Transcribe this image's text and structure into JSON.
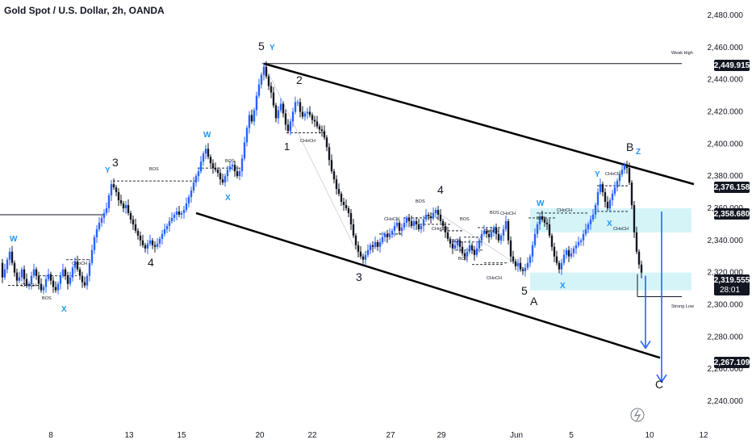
{
  "chart_data": {
    "type": "candlestick",
    "title": "Gold Spot / U.S. Dollar, 2h, OANDA",
    "colors": {
      "up": "#2962ff",
      "down": "#131722",
      "wick": "#131722",
      "channel": "#000000",
      "zone": "#b2ebf2",
      "arrow": "#2962ff",
      "wave_blue": "#2196f3"
    },
    "y_axis": {
      "min": 2230,
      "max": 2490,
      "ticks": [
        "2,240.000",
        "2,260.000",
        "2,280.000",
        "2,300.000",
        "2,320.000",
        "2,340.000",
        "2,360.000",
        "2,380.000",
        "2,400.000",
        "2,420.000",
        "2,440.000",
        "2,460.000",
        "2,480.000"
      ],
      "tick_values": [
        2240,
        2260,
        2280,
        2300,
        2320,
        2340,
        2360,
        2380,
        2400,
        2420,
        2440,
        2460,
        2480
      ]
    },
    "x_axis": {
      "ticks": [
        "8",
        "13",
        "15",
        "20",
        "22",
        "27",
        "29",
        "Jun",
        "5",
        "10",
        "12"
      ]
    },
    "price_badges": [
      {
        "label": "2,449.915",
        "value": 2449.915
      },
      {
        "label": "2,376.158",
        "value": 2376.158
      },
      {
        "label": "2,358.680",
        "value": 2358.68
      },
      {
        "label": "2,319.555",
        "value": 2319.555,
        "sub": "28:01"
      },
      {
        "label": "2,267.109",
        "value": 2267.109
      }
    ],
    "level_labels": [
      {
        "text": "Weak High",
        "value": 2450
      },
      {
        "text": "Strong Low",
        "value": 2305
      }
    ],
    "wave_labels": [
      {
        "text": "5",
        "color": "black"
      },
      {
        "text": "Y",
        "color": "blue"
      },
      {
        "text": "2",
        "color": "black"
      },
      {
        "text": "1",
        "color": "black"
      },
      {
        "text": "W",
        "color": "blue"
      },
      {
        "text": "X",
        "color": "blue"
      },
      {
        "text": "3",
        "color": "black"
      },
      {
        "text": "Y",
        "color": "blue"
      },
      {
        "text": "4",
        "color": "black"
      },
      {
        "text": "W",
        "color": "blue"
      },
      {
        "text": "X",
        "color": "blue"
      },
      {
        "text": "3",
        "color": "black"
      },
      {
        "text": "4",
        "color": "black"
      },
      {
        "text": "W",
        "color": "blue"
      },
      {
        "text": "5",
        "color": "black"
      },
      {
        "text": "A",
        "color": "black"
      },
      {
        "text": "X",
        "color": "blue"
      },
      {
        "text": "Y",
        "color": "blue"
      },
      {
        "text": "X",
        "color": "blue"
      },
      {
        "text": "B",
        "color": "black"
      },
      {
        "text": "Z",
        "color": "blue"
      },
      {
        "text": "C",
        "color": "black"
      }
    ],
    "structure_labels": [
      "BOS",
      "CHoCH",
      "BOS",
      "BOS",
      "CHoCH",
      "CHoCH",
      "BOS",
      "CHoCH",
      "CHoCH",
      "BOS",
      "CHoCH",
      "CHoCH",
      "BOS",
      "BOS",
      "BOS",
      "CHoCH",
      "CHoCH",
      "CHoCH",
      "BOS",
      "CHoCH"
    ],
    "close_path": [
      [
        0,
        2326
      ],
      [
        3,
        2317
      ],
      [
        6,
        2322
      ],
      [
        9,
        2328
      ],
      [
        12,
        2333
      ],
      [
        15,
        2326
      ],
      [
        18,
        2320
      ],
      [
        21,
        2315
      ],
      [
        24,
        2317
      ],
      [
        27,
        2322
      ],
      [
        30,
        2316
      ],
      [
        33,
        2312
      ],
      [
        36,
        2313
      ],
      [
        39,
        2318
      ],
      [
        42,
        2322
      ],
      [
        45,
        2318
      ],
      [
        48,
        2313
      ],
      [
        51,
        2309
      ],
      [
        54,
        2311
      ],
      [
        57,
        2316
      ],
      [
        60,
        2319
      ],
      [
        63,
        2315
      ],
      [
        66,
        2311
      ],
      [
        69,
        2309
      ],
      [
        72,
        2313
      ],
      [
        75,
        2318
      ],
      [
        78,
        2322
      ],
      [
        81,
        2318
      ],
      [
        84,
        2313
      ],
      [
        87,
        2317
      ],
      [
        90,
        2323
      ],
      [
        93,
        2327
      ],
      [
        96,
        2322
      ],
      [
        99,
        2318
      ],
      [
        102,
        2314
      ],
      [
        105,
        2312
      ],
      [
        108,
        2318
      ],
      [
        111,
        2326
      ],
      [
        114,
        2334
      ],
      [
        117,
        2342
      ],
      [
        120,
        2347
      ],
      [
        123,
        2351
      ],
      [
        126,
        2354
      ],
      [
        129,
        2357
      ],
      [
        132,
        2360
      ],
      [
        135,
        2368
      ],
      [
        138,
        2375
      ],
      [
        141,
        2373
      ],
      [
        144,
        2370
      ],
      [
        147,
        2365
      ],
      [
        150,
        2363
      ],
      [
        153,
        2360
      ],
      [
        156,
        2362
      ],
      [
        159,
        2357
      ],
      [
        162,
        2353
      ],
      [
        165,
        2350
      ],
      [
        168,
        2346
      ],
      [
        171,
        2343
      ],
      [
        174,
        2340
      ],
      [
        177,
        2337
      ],
      [
        180,
        2335
      ],
      [
        183,
        2338
      ],
      [
        186,
        2340
      ],
      [
        189,
        2337
      ],
      [
        192,
        2336
      ],
      [
        195,
        2338
      ],
      [
        198,
        2341
      ],
      [
        201,
        2344
      ],
      [
        204,
        2347
      ],
      [
        207,
        2349
      ],
      [
        210,
        2352
      ],
      [
        213,
        2354
      ],
      [
        216,
        2356
      ],
      [
        219,
        2358
      ],
      [
        222,
        2356
      ],
      [
        225,
        2357
      ],
      [
        228,
        2359
      ],
      [
        231,
        2363
      ],
      [
        234,
        2367
      ],
      [
        237,
        2371
      ],
      [
        240,
        2376
      ],
      [
        243,
        2380
      ],
      [
        246,
        2383
      ],
      [
        249,
        2389
      ],
      [
        252,
        2394
      ],
      [
        255,
        2397
      ],
      [
        258,
        2392
      ],
      [
        261,
        2388
      ],
      [
        264,
        2385
      ],
      [
        267,
        2384
      ],
      [
        270,
        2382
      ],
      [
        273,
        2378
      ],
      [
        276,
        2376
      ],
      [
        279,
        2380
      ],
      [
        282,
        2384
      ],
      [
        285,
        2386
      ],
      [
        288,
        2387
      ],
      [
        291,
        2383
      ],
      [
        294,
        2380
      ],
      [
        297,
        2383
      ],
      [
        300,
        2391
      ],
      [
        303,
        2401
      ],
      [
        306,
        2410
      ],
      [
        309,
        2418
      ],
      [
        312,
        2414
      ],
      [
        315,
        2421
      ],
      [
        318,
        2430
      ],
      [
        321,
        2437
      ],
      [
        324,
        2443
      ],
      [
        327,
        2448
      ],
      [
        330,
        2442
      ],
      [
        333,
        2436
      ],
      [
        336,
        2432
      ],
      [
        339,
        2424
      ],
      [
        342,
        2416
      ],
      [
        345,
        2421
      ],
      [
        348,
        2425
      ],
      [
        351,
        2419
      ],
      [
        354,
        2412
      ],
      [
        357,
        2408
      ],
      [
        360,
        2414
      ],
      [
        363,
        2420
      ],
      [
        366,
        2426
      ],
      [
        369,
        2426
      ],
      [
        372,
        2420
      ],
      [
        375,
        2417
      ],
      [
        378,
        2419
      ],
      [
        381,
        2420
      ],
      [
        384,
        2418
      ],
      [
        387,
        2415
      ],
      [
        390,
        2414
      ],
      [
        393,
        2411
      ],
      [
        396,
        2409
      ],
      [
        399,
        2408
      ],
      [
        402,
        2404
      ],
      [
        405,
        2398
      ],
      [
        408,
        2390
      ],
      [
        411,
        2383
      ],
      [
        414,
        2378
      ],
      [
        417,
        2372
      ],
      [
        420,
        2369
      ],
      [
        423,
        2364
      ],
      [
        426,
        2362
      ],
      [
        429,
        2360
      ],
      [
        432,
        2357
      ],
      [
        435,
        2350
      ],
      [
        438,
        2343
      ],
      [
        441,
        2337
      ],
      [
        444,
        2333
      ],
      [
        447,
        2330
      ],
      [
        450,
        2328
      ],
      [
        453,
        2331
      ],
      [
        456,
        2334
      ],
      [
        459,
        2337
      ],
      [
        462,
        2336
      ],
      [
        465,
        2339
      ],
      [
        468,
        2336
      ],
      [
        471,
        2339
      ],
      [
        474,
        2342
      ],
      [
        477,
        2344
      ],
      [
        480,
        2342
      ],
      [
        483,
        2344
      ],
      [
        486,
        2346
      ],
      [
        489,
        2349
      ],
      [
        492,
        2351
      ],
      [
        495,
        2346
      ],
      [
        498,
        2348
      ],
      [
        501,
        2351
      ],
      [
        504,
        2354
      ],
      [
        507,
        2352
      ],
      [
        510,
        2349
      ],
      [
        513,
        2352
      ],
      [
        516,
        2350
      ],
      [
        519,
        2347
      ],
      [
        522,
        2349
      ],
      [
        525,
        2353
      ],
      [
        528,
        2356
      ],
      [
        531,
        2355
      ],
      [
        534,
        2354
      ],
      [
        537,
        2357
      ],
      [
        540,
        2359
      ],
      [
        543,
        2356
      ],
      [
        546,
        2352
      ],
      [
        549,
        2349
      ],
      [
        552,
        2345
      ],
      [
        555,
        2341
      ],
      [
        558,
        2338
      ],
      [
        561,
        2335
      ],
      [
        564,
        2337
      ],
      [
        567,
        2340
      ],
      [
        570,
        2336
      ],
      [
        573,
        2332
      ],
      [
        576,
        2330
      ],
      [
        579,
        2333
      ],
      [
        582,
        2337
      ],
      [
        585,
        2334
      ],
      [
        588,
        2331
      ],
      [
        591,
        2335
      ],
      [
        594,
        2340
      ],
      [
        597,
        2344
      ],
      [
        600,
        2346
      ],
      [
        603,
        2344
      ],
      [
        606,
        2342
      ],
      [
        609,
        2345
      ],
      [
        612,
        2348
      ],
      [
        615,
        2344
      ],
      [
        618,
        2340
      ],
      [
        621,
        2343
      ],
      [
        624,
        2347
      ],
      [
        627,
        2352
      ],
      [
        630,
        2340
      ],
      [
        633,
        2330
      ],
      [
        636,
        2327
      ],
      [
        639,
        2324
      ],
      [
        642,
        2326
      ],
      [
        645,
        2322
      ],
      [
        648,
        2321
      ],
      [
        651,
        2323
      ],
      [
        654,
        2326
      ],
      [
        657,
        2330
      ],
      [
        660,
        2337
      ],
      [
        663,
        2344
      ],
      [
        666,
        2350
      ],
      [
        669,
        2355
      ],
      [
        672,
        2353
      ],
      [
        675,
        2351
      ],
      [
        678,
        2350
      ],
      [
        681,
        2343
      ],
      [
        684,
        2336
      ],
      [
        687,
        2330
      ],
      [
        690,
        2326
      ],
      [
        693,
        2322
      ],
      [
        696,
        2326
      ],
      [
        699,
        2331
      ],
      [
        702,
        2334
      ],
      [
        705,
        2330
      ],
      [
        708,
        2332
      ],
      [
        711,
        2335
      ],
      [
        714,
        2337
      ],
      [
        717,
        2339
      ],
      [
        720,
        2340
      ],
      [
        723,
        2344
      ],
      [
        726,
        2347
      ],
      [
        729,
        2350
      ],
      [
        732,
        2353
      ],
      [
        735,
        2356
      ],
      [
        738,
        2362
      ],
      [
        741,
        2370
      ],
      [
        744,
        2375
      ],
      [
        747,
        2370
      ],
      [
        750,
        2364
      ],
      [
        753,
        2360
      ],
      [
        756,
        2365
      ],
      [
        759,
        2369
      ],
      [
        762,
        2373
      ],
      [
        765,
        2377
      ],
      [
        768,
        2381
      ],
      [
        771,
        2384
      ],
      [
        774,
        2387
      ],
      [
        777,
        2385
      ],
      [
        780,
        2376
      ],
      [
        783,
        2362
      ],
      [
        786,
        2345
      ],
      [
        789,
        2333
      ],
      [
        792,
        2325
      ],
      [
        795,
        2320
      ]
    ]
  }
}
